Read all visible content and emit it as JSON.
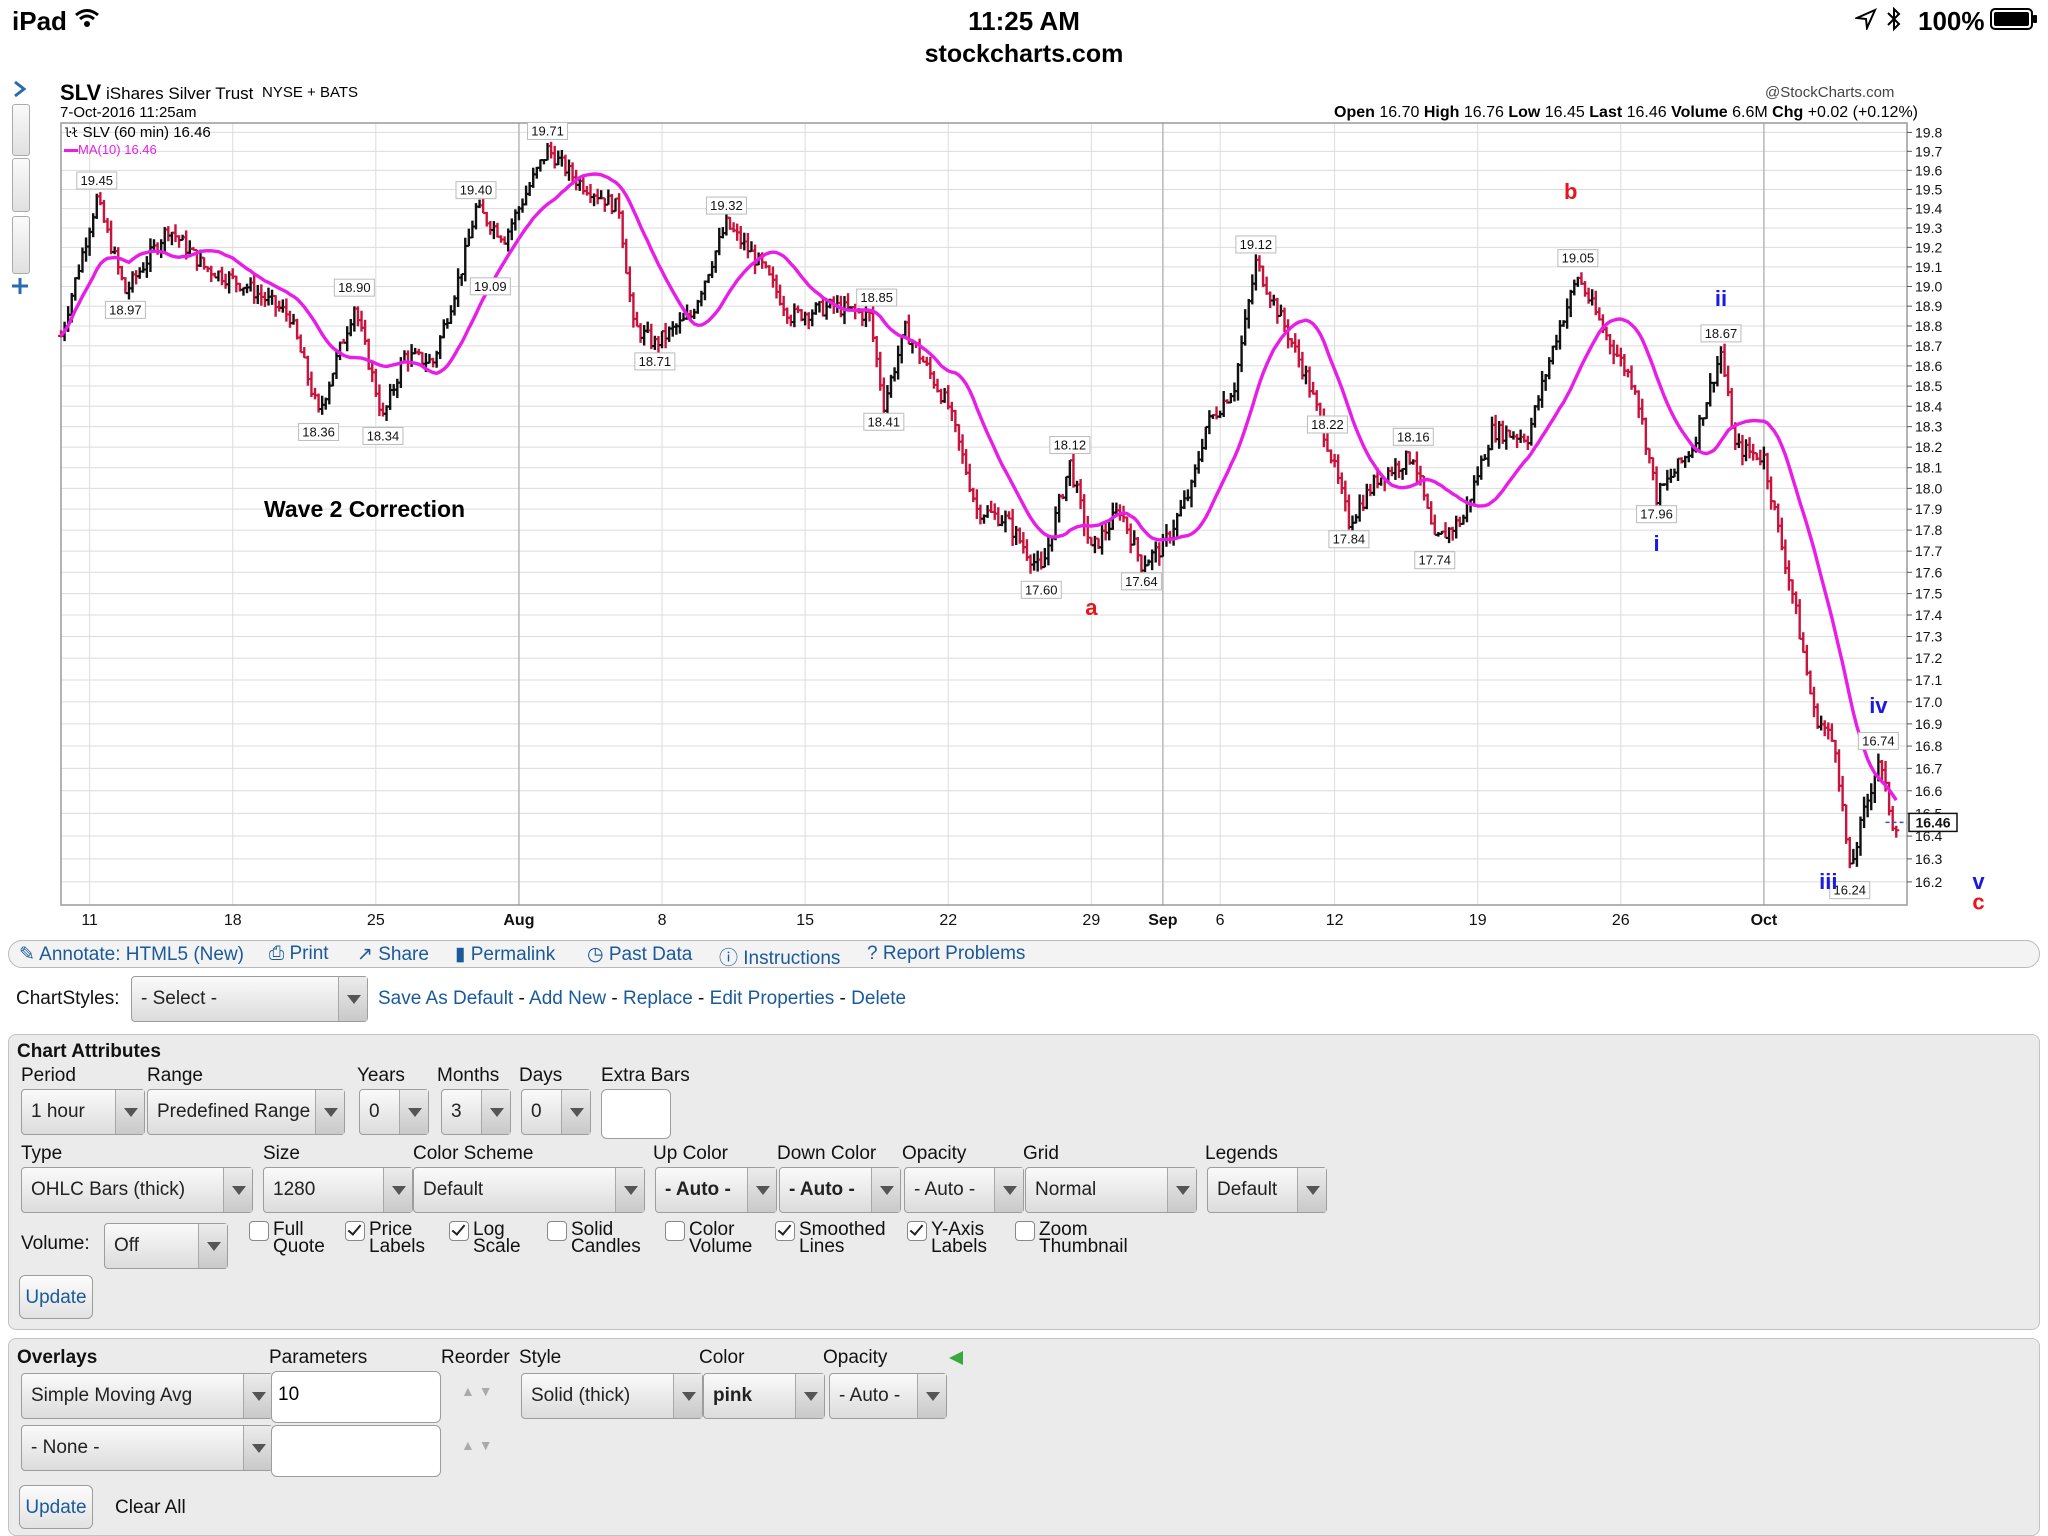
{
  "status_bar": {
    "device": "iPad",
    "time": "11:25 AM",
    "battery": "100%"
  },
  "url": "stockcharts.com",
  "chart_header": {
    "symbol": "SLV",
    "name": "iShares Silver Trust",
    "exchange": "NYSE + BATS",
    "date": "7-Oct-2016 11:25am",
    "watermark": "@StockCharts.com",
    "legend_price": "SLV (60 min) 16.46",
    "legend_ma": "MA(10) 16.46",
    "quote": [
      {
        "k": "Open",
        "v": "16.70"
      },
      {
        "k": "High",
        "v": "16.76"
      },
      {
        "k": "Low",
        "v": "16.45"
      },
      {
        "k": "Last",
        "v": "16.46"
      },
      {
        "k": "Volume",
        "v": "6.6M"
      },
      {
        "k": "Chg",
        "v": "+0.02 (+0.12%)"
      }
    ],
    "last_price_tag": "16.46",
    "annotation_main": "Wave 2 Correction"
  },
  "chart_data": {
    "type": "ohlc",
    "y_axis_ticks": [
      "19.8",
      "19.7",
      "19.6",
      "19.5",
      "19.4",
      "19.3",
      "19.2",
      "19.1",
      "19.0",
      "18.9",
      "18.8",
      "18.7",
      "18.6",
      "18.5",
      "18.4",
      "18.3",
      "18.2",
      "18.1",
      "18.0",
      "17.9",
      "17.8",
      "17.7",
      "17.6",
      "17.5",
      "17.4",
      "17.3",
      "17.2",
      "17.1",
      "17.0",
      "16.9",
      "16.8",
      "16.7",
      "16.6",
      "16.5",
      "16.4",
      "16.3",
      "16.2"
    ],
    "y_scale": "log",
    "ylim": [
      16.1,
      19.85
    ],
    "x_ticks": [
      {
        "label": "11",
        "i": 2,
        "major": false
      },
      {
        "label": "18",
        "i": 12,
        "major": false
      },
      {
        "label": "25",
        "i": 22,
        "major": false
      },
      {
        "label": "Aug",
        "i": 32,
        "major": true
      },
      {
        "label": "8",
        "i": 42,
        "major": false
      },
      {
        "label": "15",
        "i": 52,
        "major": false
      },
      {
        "label": "22",
        "i": 62,
        "major": false
      },
      {
        "label": "29",
        "i": 72,
        "major": false
      },
      {
        "label": "Sep",
        "i": 77,
        "major": true
      },
      {
        "label": "6",
        "i": 81,
        "major": false
      },
      {
        "label": "12",
        "i": 89,
        "major": false
      },
      {
        "label": "19",
        "i": 99,
        "major": false
      },
      {
        "label": "26",
        "i": 109,
        "major": false
      },
      {
        "label": "Oct",
        "i": 119,
        "major": true
      }
    ],
    "x_domain": [
      0,
      129
    ],
    "key_points": [
      {
        "i": 0,
        "v": 18.75
      },
      {
        "i": 2.5,
        "v": 19.45
      },
      {
        "i": 4.5,
        "v": 18.97
      },
      {
        "i": 7.5,
        "v": 19.3
      },
      {
        "i": 10,
        "v": 19.1
      },
      {
        "i": 13,
        "v": 19.0
      },
      {
        "i": 16,
        "v": 18.85
      },
      {
        "i": 18,
        "v": 18.36
      },
      {
        "i": 20.5,
        "v": 18.9
      },
      {
        "i": 22.5,
        "v": 18.34
      },
      {
        "i": 24,
        "v": 18.65
      },
      {
        "i": 26,
        "v": 18.62
      },
      {
        "i": 28,
        "v": 19.09
      },
      {
        "i": 29,
        "v": 19.4
      },
      {
        "i": 31,
        "v": 19.25
      },
      {
        "i": 34,
        "v": 19.71
      },
      {
        "i": 36,
        "v": 19.55
      },
      {
        "i": 39,
        "v": 19.4
      },
      {
        "i": 40,
        "v": 18.8
      },
      {
        "i": 41.5,
        "v": 18.71
      },
      {
        "i": 44,
        "v": 18.85
      },
      {
        "i": 46.5,
        "v": 19.32
      },
      {
        "i": 49,
        "v": 19.1
      },
      {
        "i": 51,
        "v": 18.85
      },
      {
        "i": 54,
        "v": 18.9
      },
      {
        "i": 56.5,
        "v": 18.85
      },
      {
        "i": 57.5,
        "v": 18.41
      },
      {
        "i": 59,
        "v": 18.78
      },
      {
        "i": 62,
        "v": 18.4
      },
      {
        "i": 64,
        "v": 17.9
      },
      {
        "i": 66,
        "v": 17.85
      },
      {
        "i": 68.5,
        "v": 17.6
      },
      {
        "i": 70.5,
        "v": 18.12
      },
      {
        "i": 72,
        "v": 17.7
      },
      {
        "i": 74,
        "v": 17.9
      },
      {
        "i": 75.5,
        "v": 17.64
      },
      {
        "i": 77,
        "v": 17.72
      },
      {
        "i": 79,
        "v": 18.0
      },
      {
        "i": 80,
        "v": 18.3
      },
      {
        "i": 82,
        "v": 18.5
      },
      {
        "i": 83.5,
        "v": 19.12
      },
      {
        "i": 85.5,
        "v": 18.8
      },
      {
        "i": 87,
        "v": 18.55
      },
      {
        "i": 88.5,
        "v": 18.22
      },
      {
        "i": 90,
        "v": 17.84
      },
      {
        "i": 92,
        "v": 18.05
      },
      {
        "i": 94.5,
        "v": 18.16
      },
      {
        "i": 96,
        "v": 17.74
      },
      {
        "i": 98,
        "v": 17.86
      },
      {
        "i": 100,
        "v": 18.28
      },
      {
        "i": 102.5,
        "v": 18.25
      },
      {
        "i": 104.5,
        "v": 18.75
      },
      {
        "i": 106,
        "v": 19.05
      },
      {
        "i": 108,
        "v": 18.75
      },
      {
        "i": 110,
        "v": 18.5
      },
      {
        "i": 111.5,
        "v": 17.96
      },
      {
        "i": 114,
        "v": 18.2
      },
      {
        "i": 116,
        "v": 18.67
      },
      {
        "i": 117,
        "v": 18.2
      },
      {
        "i": 119,
        "v": 18.15
      },
      {
        "i": 120,
        "v": 17.8
      },
      {
        "i": 121,
        "v": 17.5
      },
      {
        "i": 122.5,
        "v": 16.95
      },
      {
        "i": 124,
        "v": 16.8
      },
      {
        "i": 125,
        "v": 16.24
      },
      {
        "i": 126,
        "v": 16.5
      },
      {
        "i": 127,
        "v": 16.74
      },
      {
        "i": 128,
        "v": 16.46
      }
    ],
    "price_labels": [
      {
        "text": "19.45",
        "i": 2.5,
        "v": 19.45,
        "pos": "above"
      },
      {
        "text": "18.97",
        "i": 4.5,
        "v": 18.97,
        "pos": "below"
      },
      {
        "text": "18.36",
        "i": 18,
        "v": 18.36,
        "pos": "below"
      },
      {
        "text": "18.90",
        "i": 20.5,
        "v": 18.9,
        "pos": "above"
      },
      {
        "text": "18.34",
        "i": 22.5,
        "v": 18.34,
        "pos": "below"
      },
      {
        "text": "19.40",
        "i": 29,
        "v": 19.4,
        "pos": "above"
      },
      {
        "text": "19.09",
        "i": 30,
        "v": 19.09,
        "pos": "below"
      },
      {
        "text": "19.71",
        "i": 34,
        "v": 19.71,
        "pos": "above"
      },
      {
        "text": "18.71",
        "i": 41.5,
        "v": 18.71,
        "pos": "below"
      },
      {
        "text": "19.32",
        "i": 46.5,
        "v": 19.32,
        "pos": "above"
      },
      {
        "text": "18.85",
        "i": 57,
        "v": 18.85,
        "pos": "above"
      },
      {
        "text": "18.41",
        "i": 57.5,
        "v": 18.41,
        "pos": "below"
      },
      {
        "text": "18.12",
        "i": 70.5,
        "v": 18.12,
        "pos": "above"
      },
      {
        "text": "17.60",
        "i": 68.5,
        "v": 17.6,
        "pos": "below"
      },
      {
        "text": "17.64",
        "i": 75.5,
        "v": 17.64,
        "pos": "below"
      },
      {
        "text": "19.12",
        "i": 83.5,
        "v": 19.12,
        "pos": "above"
      },
      {
        "text": "18.22",
        "i": 88.5,
        "v": 18.22,
        "pos": "above"
      },
      {
        "text": "17.84",
        "i": 90,
        "v": 17.84,
        "pos": "below"
      },
      {
        "text": "18.16",
        "i": 94.5,
        "v": 18.16,
        "pos": "above"
      },
      {
        "text": "17.74",
        "i": 96,
        "v": 17.74,
        "pos": "below"
      },
      {
        "text": "19.05",
        "i": 106,
        "v": 19.05,
        "pos": "above"
      },
      {
        "text": "18.67",
        "i": 116,
        "v": 18.67,
        "pos": "above"
      },
      {
        "text": "17.96",
        "i": 111.5,
        "v": 17.96,
        "pos": "below"
      },
      {
        "text": "16.74",
        "i": 127,
        "v": 16.74,
        "pos": "above"
      },
      {
        "text": "16.24",
        "i": 125,
        "v": 16.24,
        "pos": "below"
      }
    ],
    "wave_labels": [
      {
        "text": "a",
        "i": 72,
        "v": 17.4,
        "color": "#e8141e"
      },
      {
        "text": "b",
        "i": 105.5,
        "v": 19.45,
        "color": "#e8141e"
      },
      {
        "text": "ii",
        "i": 116,
        "v": 18.9,
        "color": "#1a1ae0"
      },
      {
        "text": "i",
        "i": 111.5,
        "v": 17.7,
        "color": "#1a1ae0"
      },
      {
        "text": "iv",
        "i": 127,
        "v": 16.95,
        "color": "#1a1ae0"
      },
      {
        "text": "iii",
        "i": 123.5,
        "v": 16.17,
        "color": "#1a1ae0"
      },
      {
        "text": "v",
        "i": 134,
        "v": 16.17,
        "color": "#1a1ae0"
      },
      {
        "text": "c",
        "i": 134,
        "v": 16.08,
        "color": "#e8141e"
      }
    ],
    "colors": {
      "up": "#111111",
      "down": "#c8143c",
      "ma": "#e81ee8",
      "grid": "#dcdcdc",
      "major_grid": "#b8b8b8"
    }
  },
  "toolbar": {
    "annotate": "Annotate: HTML5 (New)",
    "print": "Print",
    "share": "Share",
    "permalink": "Permalink",
    "past_data": "Past Data",
    "instructions": "Instructions",
    "report": "Report Problems"
  },
  "chartstyles": {
    "label": "ChartStyles:",
    "select": "- Select -",
    "save_default": "Save As Default",
    "add_new": "Add New",
    "replace": "Replace",
    "edit_props": "Edit Properties",
    "delete": "Delete"
  },
  "attributes": {
    "title": "Chart Attributes",
    "period_label": "Period",
    "period": "1 hour",
    "range_label": "Range",
    "range": "Predefined Range",
    "years_label": "Years",
    "years": "0",
    "months_label": "Months",
    "months": "3",
    "days_label": "Days",
    "days": "0",
    "extra_label": "Extra Bars",
    "extra": "",
    "type_label": "Type",
    "type": "OHLC Bars (thick)",
    "size_label": "Size",
    "size": "1280",
    "scheme_label": "Color Scheme",
    "scheme": "Default",
    "up_label": "Up Color",
    "up": "- Auto -",
    "down_label": "Down Color",
    "down": "- Auto -",
    "opacity_label": "Opacity",
    "opacity": "- Auto -",
    "grid_label": "Grid",
    "grid": "Normal",
    "legends_label": "Legends",
    "legends": "Default",
    "volume_label": "Volume:",
    "volume": "Off",
    "checkboxes": [
      {
        "l1": "Full",
        "l2": "Quote",
        "on": false
      },
      {
        "l1": "Price",
        "l2": "Labels",
        "on": true
      },
      {
        "l1": "Log",
        "l2": "Scale",
        "on": true
      },
      {
        "l1": "Solid",
        "l2": "Candles",
        "on": false
      },
      {
        "l1": "Color",
        "l2": "Volume",
        "on": false
      },
      {
        "l1": "Smoothed",
        "l2": "Lines",
        "on": true
      },
      {
        "l1": "Y-Axis",
        "l2": "Labels",
        "on": true
      },
      {
        "l1": "Zoom",
        "l2": "Thumbnail",
        "on": false
      }
    ],
    "update": "Update"
  },
  "overlays": {
    "title": "Overlays",
    "params_label": "Parameters",
    "reorder_label": "Reorder",
    "style_label": "Style",
    "color_label": "Color",
    "opacity_label": "Opacity",
    "row1": {
      "type": "Simple Moving Avg",
      "params": "10",
      "style": "Solid (thick)",
      "color": "pink",
      "opacity": "- Auto -"
    },
    "row2": {
      "type": "- None -",
      "params": ""
    },
    "update": "Update",
    "clear_all": "Clear All"
  }
}
